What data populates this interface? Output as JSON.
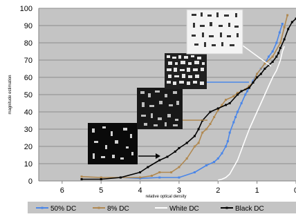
{
  "chart_data": {
    "type": "line",
    "xlabel": "relative optical density",
    "ylabel": "magnitude estimation",
    "xlim": [
      0,
      6.6
    ],
    "ylim": [
      0,
      100
    ],
    "x_reversed": true,
    "x_ticks": [
      6,
      5,
      4,
      3,
      2,
      1,
      0
    ],
    "y_ticks": [
      0,
      10,
      20,
      30,
      40,
      50,
      60,
      70,
      80,
      90,
      100
    ],
    "grid": true,
    "legend_position": "bottom",
    "series": [
      {
        "name": "50% DC",
        "color": "#4a86e8",
        "marker": "square",
        "x": [
          4.5,
          4.0,
          3.5,
          3.0,
          2.6,
          2.3,
          2.1,
          2.0,
          1.9,
          1.8,
          1.75,
          1.7,
          1.6,
          1.55,
          1.5,
          1.4,
          1.3,
          1.25,
          1.2,
          1.1,
          1.0,
          0.9,
          0.8,
          0.7,
          0.6,
          0.5,
          0.42,
          0.35
        ],
        "y": [
          2,
          1.5,
          2,
          2,
          5,
          9,
          11,
          13,
          16,
          20,
          23,
          28,
          34,
          37,
          40,
          45,
          50,
          52,
          54,
          58,
          62,
          65,
          68,
          72,
          75,
          80,
          86,
          91
        ]
      },
      {
        "name": "8% DC",
        "color": "#b08850",
        "marker": "square",
        "x": [
          5.5,
          5.0,
          4.5,
          4.0,
          3.7,
          3.5,
          3.2,
          3.0,
          2.8,
          2.6,
          2.5,
          2.4,
          2.3,
          2.2,
          2.1,
          2.0,
          1.9,
          1.8,
          1.6,
          1.5,
          1.4,
          1.3,
          1.2,
          1.1,
          1.0,
          0.8,
          0.6,
          0.4,
          0.3,
          0.22
        ],
        "y": [
          2.5,
          2,
          2,
          2,
          3,
          5,
          5,
          8,
          13,
          20,
          22,
          28,
          30,
          33,
          37,
          41,
          44,
          47,
          49,
          51,
          52,
          53,
          55,
          57,
          62,
          68,
          72,
          80,
          89,
          96
        ]
      },
      {
        "name": "White DC",
        "color": "#ffffff",
        "marker": "none",
        "x": [
          2.0,
          1.9,
          1.8,
          1.7,
          1.6,
          1.5,
          1.4,
          1.3,
          1.2,
          1.1,
          1.0,
          0.9,
          0.8,
          0.7,
          0.6,
          0.5,
          0.4,
          0.35,
          0.3
        ],
        "y": [
          0.5,
          1,
          2,
          4,
          8,
          12,
          18,
          24,
          30,
          35,
          40,
          45,
          50,
          55,
          60,
          64,
          70,
          75,
          78
        ]
      },
      {
        "name": "Black DC",
        "color": "#000000",
        "marker": "square",
        "x": [
          5.5,
          5.0,
          4.5,
          4.0,
          3.8,
          3.5,
          3.3,
          3.1,
          3.0,
          2.8,
          2.6,
          2.5,
          2.4,
          2.2,
          2.0,
          1.8,
          1.7,
          1.5,
          1.4,
          1.2,
          1.1,
          1.0,
          0.9,
          0.8,
          0.7,
          0.6,
          0.5,
          0.45,
          0.4,
          0.3,
          0.2,
          0.1,
          0.0
        ],
        "y": [
          1,
          1,
          2,
          5,
          8,
          12,
          14,
          17,
          19,
          22,
          26,
          30,
          35,
          40,
          42,
          44,
          45,
          50,
          52,
          54,
          57,
          60,
          62,
          65,
          67,
          69,
          72,
          74,
          77,
          82,
          88,
          92,
          94
        ]
      }
    ]
  }
}
